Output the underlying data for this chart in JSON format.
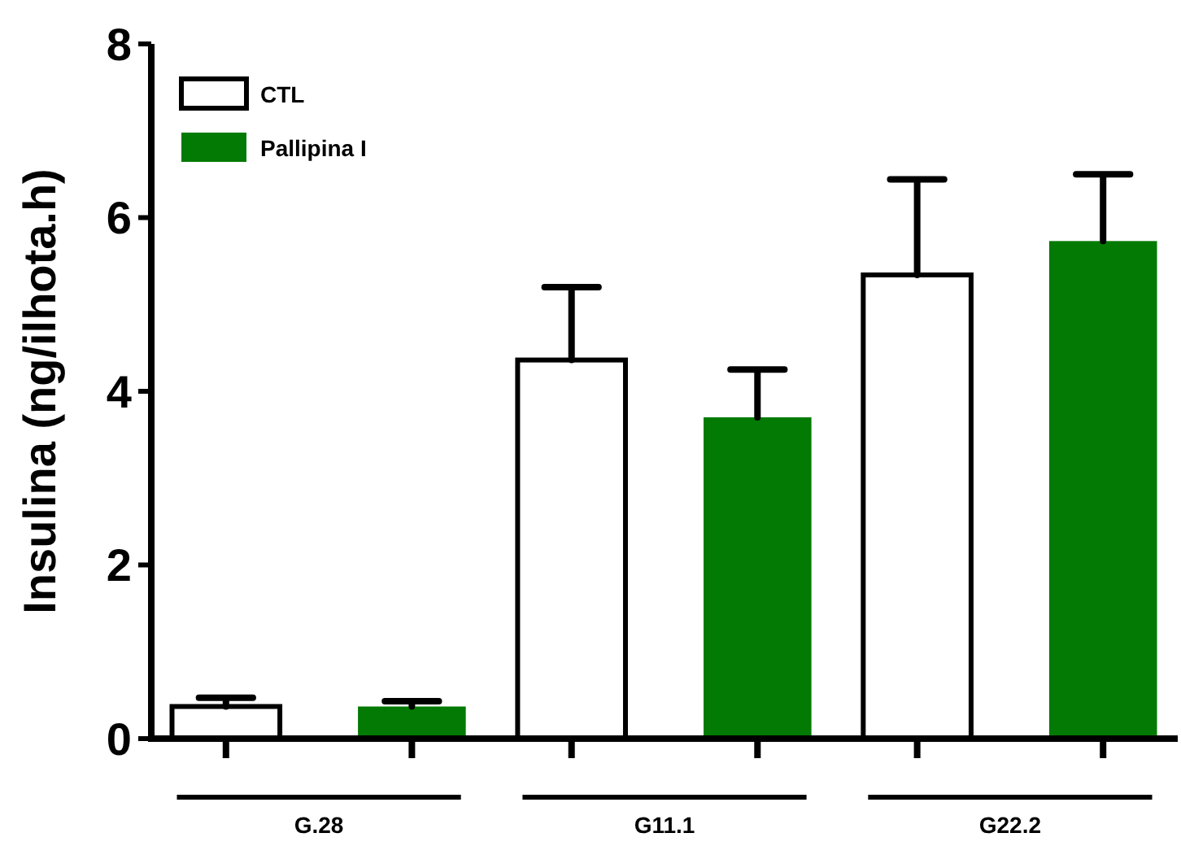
{
  "chart_data": {
    "type": "bar",
    "ylabel": "Insulina (ng/ilhota.h)",
    "categories": [
      "G.28",
      "G11.1",
      "G22.2"
    ],
    "series": [
      {
        "name": "CTL",
        "color": "#ffffff",
        "values": [
          0.37,
          4.36,
          5.34
        ],
        "errors": [
          [
            0.37,
            0.47
          ],
          [
            4.36,
            5.2
          ],
          [
            5.34,
            6.44
          ]
        ]
      },
      {
        "name": "Pallipina I",
        "color": "#037a03",
        "values": [
          0.37,
          3.7,
          5.73
        ],
        "errors": [
          [
            0.37,
            0.43
          ],
          [
            3.7,
            4.25
          ],
          [
            5.73,
            6.5
          ]
        ]
      }
    ],
    "ylim": [
      0,
      8
    ],
    "yticks": [
      0,
      2,
      4,
      6,
      8
    ],
    "grid": false,
    "legend": "top left"
  }
}
